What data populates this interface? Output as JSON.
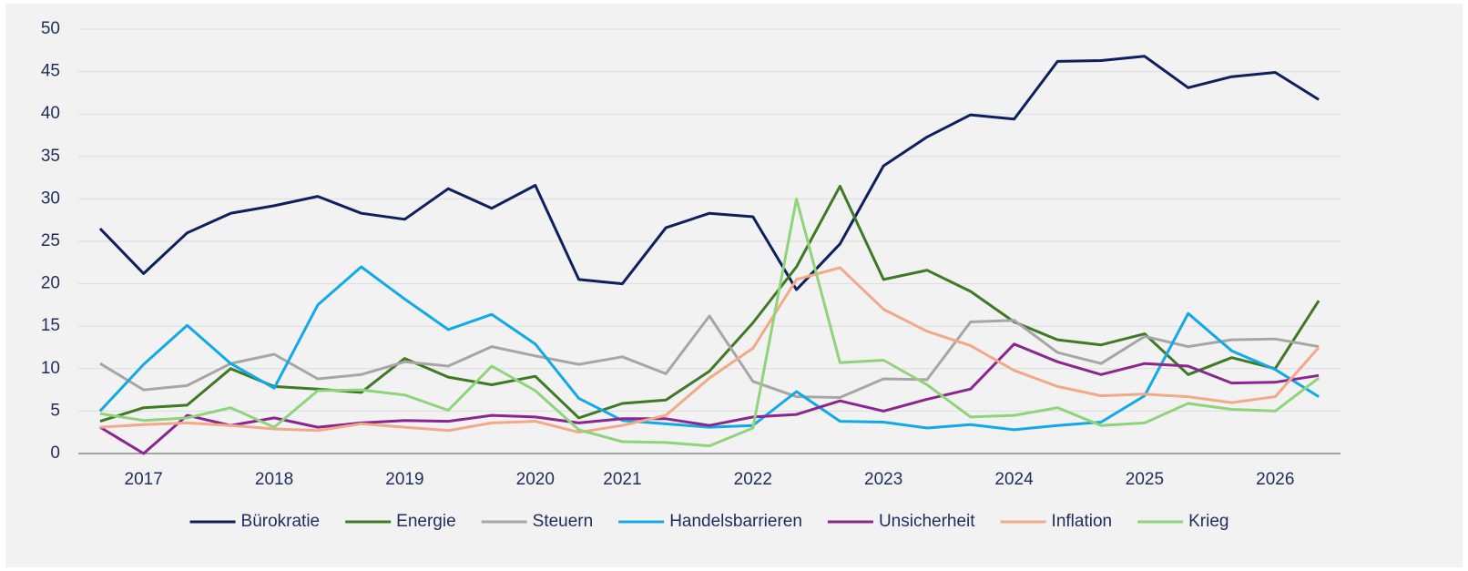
{
  "chart_data": {
    "type": "line",
    "categories": [
      null,
      "2017",
      null,
      null,
      "2018",
      null,
      null,
      "2019",
      null,
      null,
      "2020",
      null,
      "2021",
      null,
      null,
      "2022",
      null,
      null,
      "2023",
      null,
      null,
      "2024",
      null,
      null,
      "2025",
      null,
      null,
      "2026",
      null
    ],
    "series": [
      {
        "name": "Bürokratie",
        "color": "#0d1f5c",
        "values": [
          26.5,
          21.2,
          26,
          28.3,
          29.2,
          30.3,
          28.3,
          27.6,
          31.2,
          28.9,
          31.6,
          20.5,
          20,
          26.6,
          28.3,
          27.9,
          19.3,
          24.7,
          33.9,
          37.3,
          39.9,
          39.4,
          46.2,
          46.3,
          46.8,
          43.1,
          44.4,
          44.9,
          41.7
        ]
      },
      {
        "name": "Energie",
        "color": "#3e7a23",
        "values": [
          3.8,
          5.4,
          5.7,
          10,
          7.9,
          7.6,
          7.2,
          11.2,
          9,
          8.1,
          9.1,
          4.2,
          5.9,
          6.3,
          9.7,
          15.4,
          22,
          31.5,
          20.5,
          21.6,
          19.1,
          15.5,
          13.4,
          12.8,
          14.1,
          9.3,
          11.3,
          10,
          18
        ]
      },
      {
        "name": "Steuern",
        "color": "#a6a6a6",
        "values": [
          10.6,
          7.5,
          8,
          10.6,
          11.7,
          8.8,
          9.3,
          10.8,
          10.3,
          12.6,
          11.5,
          10.5,
          11.4,
          9.4,
          16.2,
          8.5,
          6.7,
          6.6,
          8.8,
          8.7,
          15.5,
          15.7,
          11.9,
          10.6,
          13.8,
          12.6,
          13.4,
          13.5,
          12.6
        ]
      },
      {
        "name": "Handelsbarrieren",
        "color": "#11a9e6",
        "values": [
          5,
          10.5,
          15.1,
          10.6,
          7.7,
          17.5,
          22,
          18.2,
          14.6,
          16.4,
          12.9,
          6.5,
          3.9,
          3.5,
          3.1,
          3.3,
          7.3,
          3.8,
          3.7,
          3,
          3.4,
          2.8,
          3.3,
          3.7,
          6.8,
          16.5,
          12.1,
          9.9,
          6.7
        ]
      },
      {
        "name": "Unsicherheit",
        "color": "#8b2590",
        "values": [
          3.1,
          0,
          4.5,
          3.3,
          4.2,
          3.1,
          3.6,
          3.9,
          3.8,
          4.5,
          4.3,
          3.6,
          4.1,
          4.1,
          3.3,
          4.3,
          4.6,
          6.2,
          5,
          6.4,
          7.6,
          12.9,
          10.8,
          9.3,
          10.6,
          10.3,
          8.3,
          8.4,
          9.2
        ]
      },
      {
        "name": "Inflation",
        "color": "#f2a987",
        "values": [
          3.1,
          3.4,
          3.6,
          3.3,
          2.9,
          2.7,
          3.5,
          3.1,
          2.7,
          3.6,
          3.8,
          2.5,
          3.3,
          4.5,
          8.9,
          12.4,
          20.5,
          21.9,
          17,
          14.4,
          12.7,
          9.8,
          7.9,
          6.8,
          7,
          6.7,
          6,
          6.7,
          12.5
        ]
      },
      {
        "name": "Krieg",
        "color": "#8fd47a",
        "values": [
          4.7,
          3.9,
          4.2,
          5.4,
          3.1,
          7.4,
          7.5,
          6.9,
          5.1,
          10.3,
          7.4,
          2.8,
          1.4,
          1.3,
          0.9,
          3,
          30,
          10.7,
          11,
          8.1,
          4.3,
          4.5,
          5.4,
          3.3,
          3.6,
          5.9,
          5.2,
          5,
          8.9
        ]
      }
    ],
    "ylim": [
      0,
      50
    ],
    "yticks": [
      0,
      5,
      10,
      15,
      20,
      25,
      30,
      35,
      40,
      45,
      50
    ],
    "grid": true,
    "legend": "bottom"
  }
}
